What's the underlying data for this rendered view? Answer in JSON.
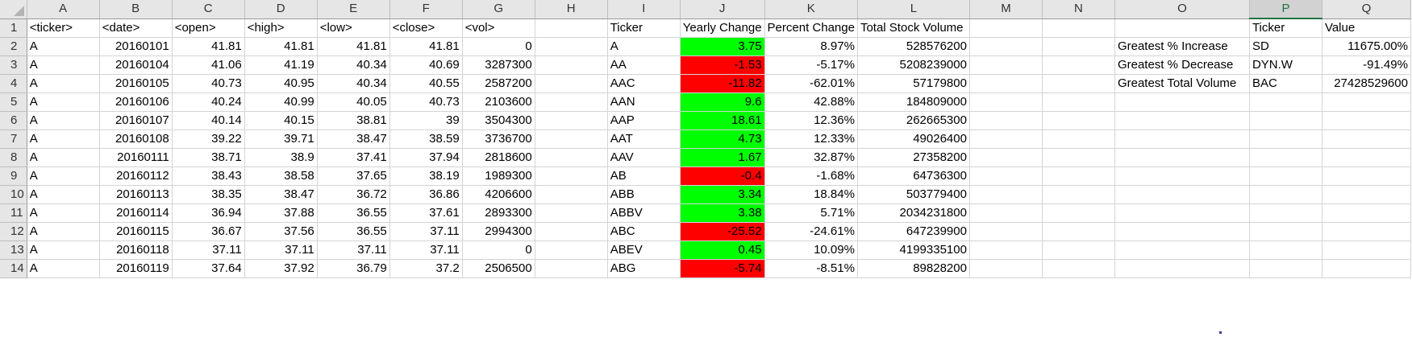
{
  "columns": [
    "A",
    "B",
    "C",
    "D",
    "E",
    "F",
    "G",
    "H",
    "I",
    "J",
    "K",
    "L",
    "M",
    "N",
    "O",
    "P",
    "Q"
  ],
  "selected_column": "P",
  "colors": {
    "positive_fill": "#00ff00",
    "negative_fill": "#ff0000",
    "header_bg": "#e6e6e6",
    "selected_header": "#217346"
  },
  "rows": [
    {
      "row": "1",
      "A": "<ticker>",
      "B": "<date>",
      "C": "<open>",
      "D": "<high>",
      "E": "<low>",
      "F": "<close>",
      "G": "<vol>",
      "H": "",
      "I": "Ticker",
      "J": "Yearly Change",
      "K": "Percent Change",
      "L": "Total Stock Volume",
      "M": "",
      "N": "",
      "O": "",
      "P": "Ticker",
      "Q": "Value"
    },
    {
      "row": "2",
      "A": "A",
      "B": "20160101",
      "C": "41.81",
      "D": "41.81",
      "E": "41.81",
      "F": "41.81",
      "G": "0",
      "H": "",
      "I": "A",
      "J": "3.75",
      "K": "8.97%",
      "L": "528576200",
      "M": "",
      "N": "",
      "O": "Greatest % Increase",
      "P": "SD",
      "Q": "11675.00%"
    },
    {
      "row": "3",
      "A": "A",
      "B": "20160104",
      "C": "41.06",
      "D": "41.19",
      "E": "40.34",
      "F": "40.69",
      "G": "3287300",
      "H": "",
      "I": "AA",
      "J": "-1.53",
      "K": "-5.17%",
      "L": "5208239000",
      "M": "",
      "N": "",
      "O": "Greatest % Decrease",
      "P": "DYN.W",
      "Q": "-91.49%"
    },
    {
      "row": "4",
      "A": "A",
      "B": "20160105",
      "C": "40.73",
      "D": "40.95",
      "E": "40.34",
      "F": "40.55",
      "G": "2587200",
      "H": "",
      "I": "AAC",
      "J": "-11.82",
      "K": "-62.01%",
      "L": "57179800",
      "M": "",
      "N": "",
      "O": "Greatest Total Volume",
      "P": "BAC",
      "Q": "27428529600"
    },
    {
      "row": "5",
      "A": "A",
      "B": "20160106",
      "C": "40.24",
      "D": "40.99",
      "E": "40.05",
      "F": "40.73",
      "G": "2103600",
      "H": "",
      "I": "AAN",
      "J": "9.6",
      "K": "42.88%",
      "L": "184809000",
      "M": "",
      "N": "",
      "O": "",
      "P": "",
      "Q": ""
    },
    {
      "row": "6",
      "A": "A",
      "B": "20160107",
      "C": "40.14",
      "D": "40.15",
      "E": "38.81",
      "F": "39",
      "G": "3504300",
      "H": "",
      "I": "AAP",
      "J": "18.61",
      "K": "12.36%",
      "L": "262665300",
      "M": "",
      "N": "",
      "O": "",
      "P": "",
      "Q": ""
    },
    {
      "row": "7",
      "A": "A",
      "B": "20160108",
      "C": "39.22",
      "D": "39.71",
      "E": "38.47",
      "F": "38.59",
      "G": "3736700",
      "H": "",
      "I": "AAT",
      "J": "4.73",
      "K": "12.33%",
      "L": "49026400",
      "M": "",
      "N": "",
      "O": "",
      "P": "",
      "Q": ""
    },
    {
      "row": "8",
      "A": "A",
      "B": "20160111",
      "C": "38.71",
      "D": "38.9",
      "E": "37.41",
      "F": "37.94",
      "G": "2818600",
      "H": "",
      "I": "AAV",
      "J": "1.67",
      "K": "32.87%",
      "L": "27358200",
      "M": "",
      "N": "",
      "O": "",
      "P": "",
      "Q": ""
    },
    {
      "row": "9",
      "A": "A",
      "B": "20160112",
      "C": "38.43",
      "D": "38.58",
      "E": "37.65",
      "F": "38.19",
      "G": "1989300",
      "H": "",
      "I": "AB",
      "J": "-0.4",
      "K": "-1.68%",
      "L": "64736300",
      "M": "",
      "N": "",
      "O": "",
      "P": "",
      "Q": ""
    },
    {
      "row": "10",
      "A": "A",
      "B": "20160113",
      "C": "38.35",
      "D": "38.47",
      "E": "36.72",
      "F": "36.86",
      "G": "4206600",
      "H": "",
      "I": "ABB",
      "J": "3.34",
      "K": "18.84%",
      "L": "503779400",
      "M": "",
      "N": "",
      "O": "",
      "P": "",
      "Q": ""
    },
    {
      "row": "11",
      "A": "A",
      "B": "20160114",
      "C": "36.94",
      "D": "37.88",
      "E": "36.55",
      "F": "37.61",
      "G": "2893300",
      "H": "",
      "I": "ABBV",
      "J": "3.38",
      "K": "5.71%",
      "L": "2034231800",
      "M": "",
      "N": "",
      "O": "",
      "P": "",
      "Q": ""
    },
    {
      "row": "12",
      "A": "A",
      "B": "20160115",
      "C": "36.67",
      "D": "37.56",
      "E": "36.55",
      "F": "37.11",
      "G": "2994300",
      "H": "",
      "I": "ABC",
      "J": "-25.52",
      "K": "-24.61%",
      "L": "647239900",
      "M": "",
      "N": "",
      "O": "",
      "P": "",
      "Q": ""
    },
    {
      "row": "13",
      "A": "A",
      "B": "20160118",
      "C": "37.11",
      "D": "37.11",
      "E": "37.11",
      "F": "37.11",
      "G": "0",
      "H": "",
      "I": "ABEV",
      "J": "0.45",
      "K": "10.09%",
      "L": "4199335100",
      "M": "",
      "N": "",
      "O": "",
      "P": "",
      "Q": ""
    },
    {
      "row": "14",
      "A": "A",
      "B": "20160119",
      "C": "37.64",
      "D": "37.92",
      "E": "36.79",
      "F": "37.2",
      "G": "2506500",
      "H": "",
      "I": "ABG",
      "J": "-5.74",
      "K": "-8.51%",
      "L": "89828200",
      "M": "",
      "N": "",
      "O": "",
      "P": "",
      "Q": ""
    }
  ]
}
